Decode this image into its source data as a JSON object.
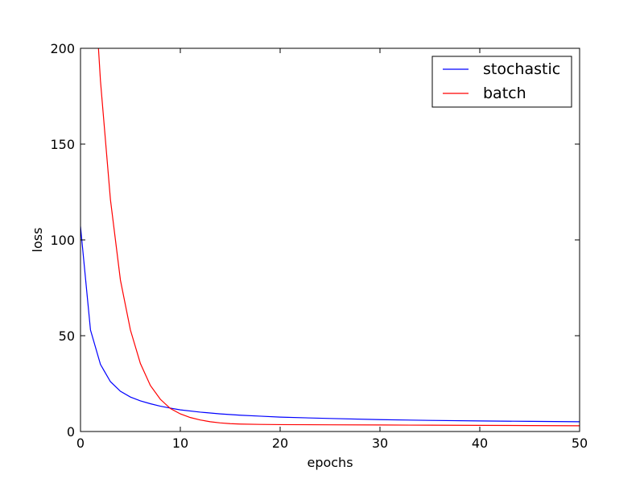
{
  "chart_data": {
    "type": "line",
    "title": "",
    "xlabel": "epochs",
    "ylabel": "loss",
    "xlim": [
      0,
      50
    ],
    "ylim": [
      0,
      200
    ],
    "xticks": [
      0,
      10,
      20,
      30,
      40,
      50
    ],
    "yticks": [
      0,
      50,
      100,
      150,
      200
    ],
    "grid": false,
    "legend_position": "top-right",
    "series": [
      {
        "name": "stochastic",
        "color": "#0000ff",
        "x": [
          0,
          1,
          2,
          3,
          4,
          5,
          6,
          7,
          8,
          9,
          10,
          12,
          14,
          16,
          18,
          20,
          25,
          30,
          35,
          40,
          45,
          50
        ],
        "y": [
          107,
          53,
          35,
          26,
          21,
          18,
          16,
          14.5,
          13.2,
          12.2,
          11.3,
          10.1,
          9.2,
          8.5,
          8.0,
          7.5,
          6.8,
          6.2,
          5.8,
          5.5,
          5.3,
          5.1
        ]
      },
      {
        "name": "batch",
        "color": "#ff0000",
        "x": [
          1.8,
          2,
          3,
          4,
          5,
          6,
          7,
          8,
          9,
          10,
          11,
          12,
          13,
          14,
          15,
          16,
          18,
          20,
          25,
          30,
          35,
          40,
          45,
          50
        ],
        "y": [
          200,
          183,
          121,
          79,
          53,
          35.5,
          24,
          16.8,
          12,
          9.2,
          7.3,
          6.0,
          5.1,
          4.5,
          4.1,
          3.9,
          3.7,
          3.6,
          3.5,
          3.4,
          3.3,
          3.2,
          3.1,
          3.0
        ]
      }
    ]
  }
}
